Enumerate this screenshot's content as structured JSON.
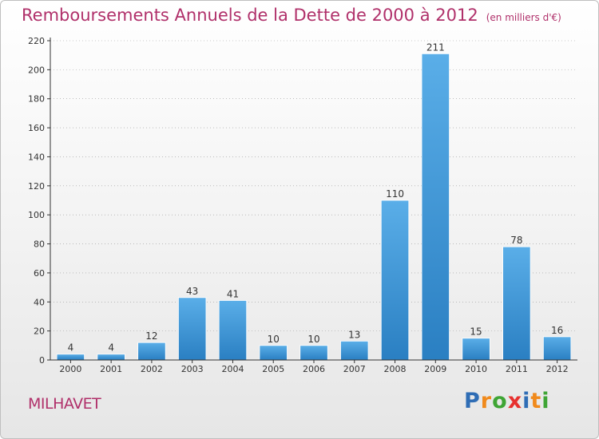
{
  "title": "Remboursements Annuels de la Dette de 2000 à 2012",
  "unit": "(en milliers d'€)",
  "place": "MILHAVET",
  "logo": {
    "text": "Proxiti",
    "letters": [
      {
        "ch": "P",
        "color": "#2f6db5"
      },
      {
        "ch": "r",
        "color": "#f08a1c"
      },
      {
        "ch": "o",
        "color": "#3fa535"
      },
      {
        "ch": "x",
        "color": "#e7312f"
      },
      {
        "ch": "i",
        "color": "#2f6db5"
      },
      {
        "ch": "t",
        "color": "#f08a1c"
      },
      {
        "ch": "i",
        "color": "#3fa535"
      }
    ]
  },
  "colors": {
    "bar_light": "#5aaee8",
    "bar_dark": "#2a7fc2",
    "title": "#b0306a",
    "axis": "#333333",
    "grid": "#999999"
  },
  "chart_data": {
    "type": "bar",
    "title": "Remboursements Annuels de la Dette de 2000 à 2012",
    "subtitle": "(en milliers d'€)",
    "xlabel": "",
    "ylabel": "",
    "categories": [
      "2000",
      "2001",
      "2002",
      "2003",
      "2004",
      "2005",
      "2006",
      "2007",
      "2008",
      "2009",
      "2010",
      "2011",
      "2012"
    ],
    "values": [
      4,
      4,
      12,
      43,
      41,
      10,
      10,
      13,
      110,
      211,
      15,
      78,
      16
    ],
    "ylim": [
      0,
      220
    ],
    "yticks": [
      0,
      20,
      40,
      60,
      80,
      100,
      120,
      140,
      160,
      180,
      200,
      220
    ],
    "grid": true,
    "data_labels": true
  }
}
